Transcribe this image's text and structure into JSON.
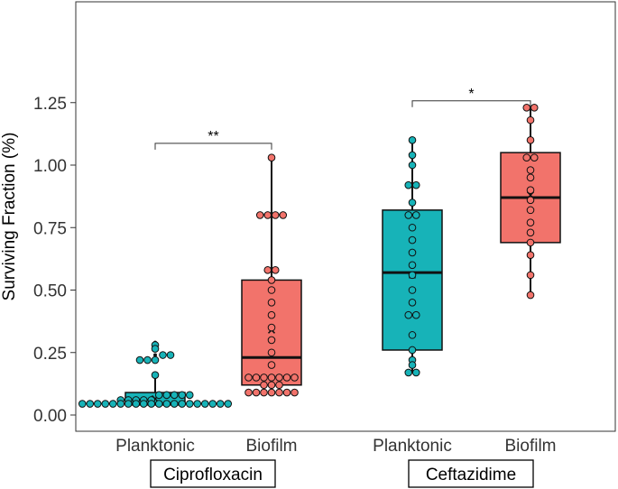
{
  "chart_data": {
    "type": "box",
    "ylabel": "Surviving Fraction (%)",
    "ylim": [
      0,
      1.28
    ],
    "yticks": [
      "0.00",
      "0.25",
      "0.50",
      "0.75",
      "1.00",
      "1.25"
    ],
    "ytick_values": [
      0,
      0.25,
      0.5,
      0.75,
      1.0,
      1.25
    ],
    "grid": false,
    "colors": {
      "Planktonic": "#17b3b8",
      "Biofilm": "#f2736b"
    },
    "groups": [
      {
        "name": "Ciprofloxacin",
        "categories": [
          {
            "label": "Planktonic",
            "color": "#17b3b8",
            "box": {
              "q1": 0.04,
              "median": 0.045,
              "q3": 0.09,
              "mean": 0.065,
              "whisker_low": 0.04,
              "whisker_high": 0.16
            },
            "outliers": [
              0.22,
              0.24,
              0.265,
              0.28,
              0.29
            ],
            "points": [
              0.045,
              0.045,
              0.045,
              0.045,
              0.045,
              0.045,
              0.045,
              0.045,
              0.045,
              0.045,
              0.045,
              0.045,
              0.045,
              0.045,
              0.045,
              0.045,
              0.045,
              0.045,
              0.045,
              0.045,
              0.06,
              0.06,
              0.06,
              0.06,
              0.06,
              0.08,
              0.08,
              0.08,
              0.08,
              0.08,
              0.16,
              0.22,
              0.22,
              0.22,
              0.24,
              0.24,
              0.265,
              0.28
            ]
          },
          {
            "label": "Biofilm",
            "color": "#f2736b",
            "box": {
              "q1": 0.12,
              "median": 0.23,
              "q3": 0.54,
              "mean": 0.34,
              "whisker_low": 0.09,
              "whisker_high": 1.03
            },
            "outliers": [],
            "points": [
              0.09,
              0.09,
              0.09,
              0.09,
              0.09,
              0.09,
              0.09,
              0.12,
              0.12,
              0.12,
              0.15,
              0.15,
              0.15,
              0.15,
              0.15,
              0.15,
              0.15,
              0.2,
              0.25,
              0.3,
              0.35,
              0.4,
              0.45,
              0.5,
              0.54,
              0.58,
              0.58,
              0.8,
              0.8,
              0.8,
              0.8,
              1.03
            ]
          }
        ]
      },
      {
        "name": "Ceftazidime",
        "categories": [
          {
            "label": "Planktonic",
            "color": "#17b3b8",
            "box": {
              "q1": 0.26,
              "median": 0.57,
              "q3": 0.82,
              "mean": 0.56,
              "whisker_low": 0.17,
              "whisker_high": 1.1
            },
            "outliers": [],
            "points": [
              0.17,
              0.17,
              0.2,
              0.22,
              0.26,
              0.32,
              0.4,
              0.4,
              0.45,
              0.5,
              0.56,
              0.6,
              0.65,
              0.7,
              0.75,
              0.8,
              0.8,
              0.85,
              0.92,
              0.92,
              1.0,
              1.04,
              1.1
            ]
          },
          {
            "label": "Biofilm",
            "color": "#f2736b",
            "box": {
              "q1": 0.69,
              "median": 0.87,
              "q3": 1.05,
              "mean": 0.88,
              "whisker_low": 0.48,
              "whisker_high": 1.23
            },
            "outliers": [],
            "points": [
              0.48,
              0.56,
              0.64,
              0.69,
              0.73,
              0.77,
              0.82,
              0.86,
              0.9,
              0.95,
              0.98,
              1.03,
              1.03,
              1.1,
              1.18,
              1.23,
              1.23
            ]
          }
        ]
      }
    ],
    "significance": [
      {
        "group": "Ciprofloxacin",
        "label": "**",
        "y": 1.08
      },
      {
        "group": "Ceftazidime",
        "label": "*",
        "y": 1.25
      }
    ]
  }
}
